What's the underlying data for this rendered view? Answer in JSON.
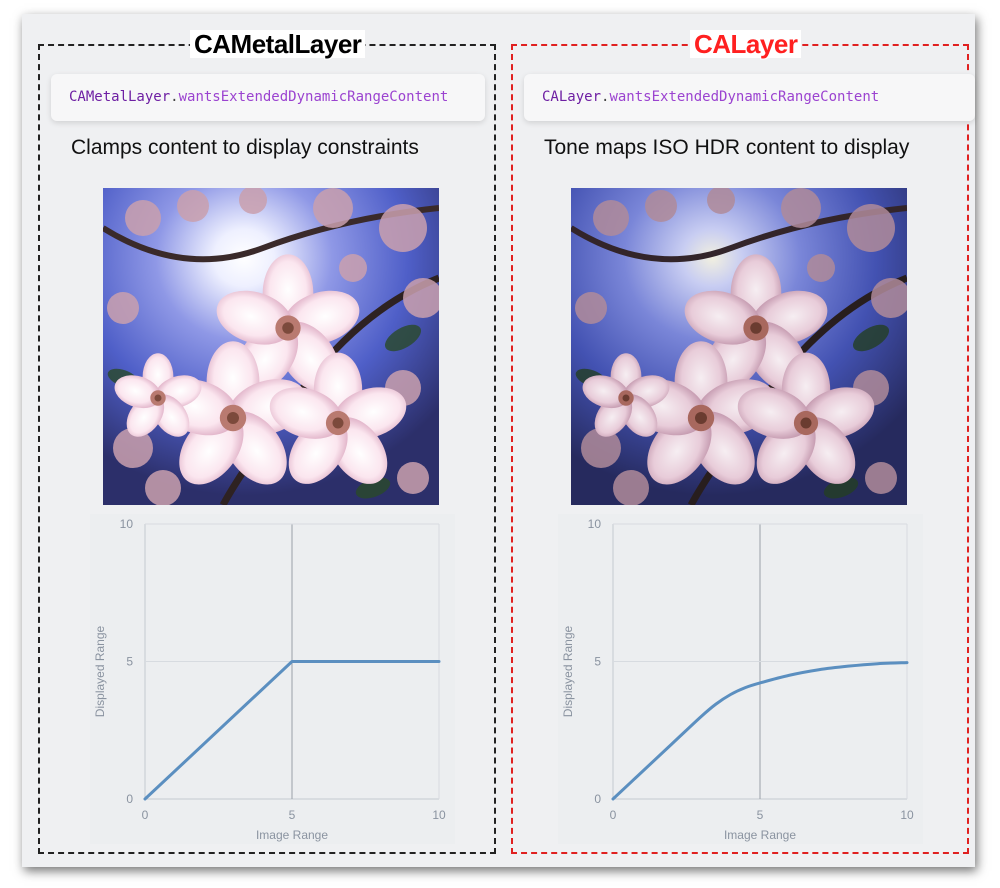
{
  "panels": [
    {
      "title": "CAMetalLayer",
      "code": {
        "class_name": "CAMetalLayer",
        "separator": ".",
        "property": "wantsExtendedDynamicRangeContent"
      },
      "caption": "Clamps content to display constraints",
      "photo": {
        "icon": "cherry-blossom-photo",
        "tone": "clamped"
      }
    },
    {
      "title": "CALayer",
      "code": {
        "class_name": "CALayer",
        "separator": ".",
        "property": "wantsExtendedDynamicRangeContent"
      },
      "caption": "Tone maps ISO HDR content to display",
      "photo": {
        "icon": "cherry-blossom-photo",
        "tone": "tone-mapped"
      }
    }
  ],
  "colors": {
    "left_border": "#222222",
    "right_border": "#e02020",
    "right_title": "#ff2020",
    "curve": "#5b8fc0"
  },
  "chart_data": [
    {
      "type": "line",
      "title": "",
      "xlabel": "Image Range",
      "ylabel": "Displayed Range",
      "xlim": [
        0,
        10
      ],
      "ylim": [
        0,
        10
      ],
      "xticks": [
        0,
        5,
        10
      ],
      "yticks": [
        0,
        5,
        10
      ],
      "grid": true,
      "series": [
        {
          "x": [
            0,
            5,
            10
          ],
          "y": [
            0,
            5,
            5
          ]
        }
      ]
    },
    {
      "type": "line",
      "title": "",
      "xlabel": "Image Range",
      "ylabel": "Displayed Range",
      "xlim": [
        0,
        10
      ],
      "ylim": [
        0,
        10
      ],
      "xticks": [
        0,
        5,
        10
      ],
      "yticks": [
        0,
        5,
        10
      ],
      "grid": true,
      "series": [
        {
          "x": [
            0,
            1,
            2,
            3,
            3.5,
            4,
            4.5,
            5,
            6,
            7,
            8,
            9,
            10
          ],
          "y": [
            0,
            1.0,
            2.0,
            3.0,
            3.45,
            3.8,
            4.05,
            4.22,
            4.5,
            4.7,
            4.83,
            4.92,
            4.96
          ]
        }
      ]
    }
  ]
}
